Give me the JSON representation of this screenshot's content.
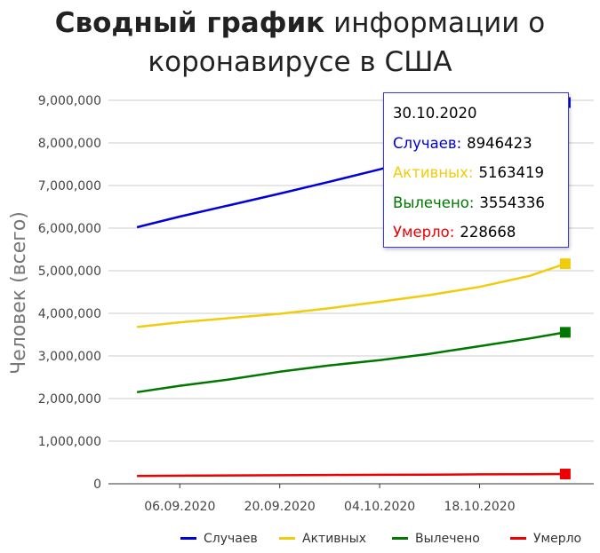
{
  "title": {
    "bold": "Сводный график",
    "line1_rest": " информации о",
    "line2": "коронавирусе в США"
  },
  "chart_data": {
    "type": "line",
    "title": "Сводный график информации о коронавирусе в США",
    "ylabel": "Человек (всего)",
    "xlabel": "",
    "ylim": [
      0,
      9000000
    ],
    "y_ticks": [
      "0",
      "1,000,000",
      "2,000,000",
      "3,000,000",
      "4,000,000",
      "5,000,000",
      "6,000,000",
      "7,000,000",
      "8,000,000",
      "9,000,000"
    ],
    "x_ticks": [
      "06.09.2020",
      "20.09.2020",
      "04.10.2020",
      "18.10.2020"
    ],
    "x_tick_positions": [
      "2020-09-06",
      "2020-09-20",
      "2020-10-04",
      "2020-10-18"
    ],
    "xlim": [
      "2020-08-27",
      "2020-11-03"
    ],
    "grid": true,
    "legend_position": "bottom",
    "x": [
      "2020-08-31",
      "2020-09-06",
      "2020-09-13",
      "2020-09-20",
      "2020-09-27",
      "2020-10-04",
      "2020-10-11",
      "2020-10-18",
      "2020-10-25",
      "2020-10-30"
    ],
    "series": [
      {
        "name": "Случаев",
        "color": "#0000dd",
        "values": [
          6020000,
          6270000,
          6540000,
          6810000,
          7090000,
          7380000,
          7700000,
          8080000,
          8550000,
          8946423
        ]
      },
      {
        "name": "Активных",
        "color": "#f2cc0c",
        "values": [
          3680000,
          3790000,
          3890000,
          3990000,
          4120000,
          4270000,
          4430000,
          4620000,
          4880000,
          5163419
        ]
      },
      {
        "name": "Вылечено",
        "color": "#007700",
        "values": [
          2150000,
          2300000,
          2450000,
          2630000,
          2780000,
          2900000,
          3050000,
          3230000,
          3410000,
          3554336
        ]
      },
      {
        "name": "Умерло",
        "color": "#ee0000",
        "values": [
          183000,
          190000,
          196000,
          201000,
          206000,
          210000,
          215000,
          220000,
          225000,
          228668
        ]
      }
    ]
  },
  "tooltip": {
    "date": "30.10.2020",
    "rows": [
      {
        "label": "Случаев:",
        "value": "8946423",
        "color": "#0000dd"
      },
      {
        "label": "Активных:",
        "value": "5163419",
        "color": "#f2cc0c"
      },
      {
        "label": "Вылечено:",
        "value": "3554336",
        "color": "#007700"
      },
      {
        "label": "Умерло:",
        "value": "228668",
        "color": "#ee0000"
      }
    ]
  },
  "legend": [
    {
      "label": "Случаев",
      "color": "#0000dd"
    },
    {
      "label": "Активных",
      "color": "#f2cc0c"
    },
    {
      "label": "Вылечено",
      "color": "#007700"
    },
    {
      "label": "Умерло",
      "color": "#ee0000"
    }
  ]
}
